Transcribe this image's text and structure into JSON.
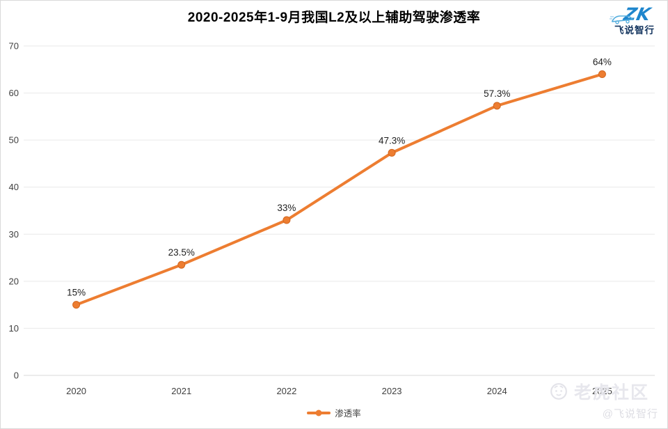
{
  "header": {
    "title": "2020-2025年1-9月我国L2及以上辅助驾驶渗透率",
    "logo": {
      "brand": "飞说智行",
      "mark": "ZK"
    }
  },
  "chart_data": {
    "type": "line",
    "title": "2020-2025年1-9月我国L2及以上辅助驾驶渗透率",
    "categories": [
      "2020",
      "2021",
      "2022",
      "2023",
      "2024",
      "2025"
    ],
    "series": [
      {
        "name": "渗透率",
        "values": [
          15,
          23.5,
          33,
          47.3,
          57.3,
          64
        ],
        "labels": [
          "15%",
          "23.5%",
          "33%",
          "47.3%",
          "57.3%",
          "64%"
        ],
        "color": "#ED7D31"
      }
    ],
    "xlabel": "",
    "ylabel": "",
    "ylim": [
      0,
      70
    ],
    "ytick_step": 10,
    "grid": true,
    "legend_position": "bottom"
  },
  "legend": {
    "items": [
      {
        "label": "渗透率",
        "color": "#ED7D31"
      }
    ]
  },
  "watermark": {
    "community": "老虎社区",
    "handle": "@飞说智行"
  },
  "colors": {
    "accent": "#ED7D31",
    "marker_edge": "#d2661e",
    "grid": "#e9e9e9",
    "axis_line": "#d8d8d8",
    "axis_text": "#404040",
    "data_label_text": "#1f1f1f",
    "logo_blue": "#1f86cd",
    "watermark_gray": "#e6e6ec"
  }
}
